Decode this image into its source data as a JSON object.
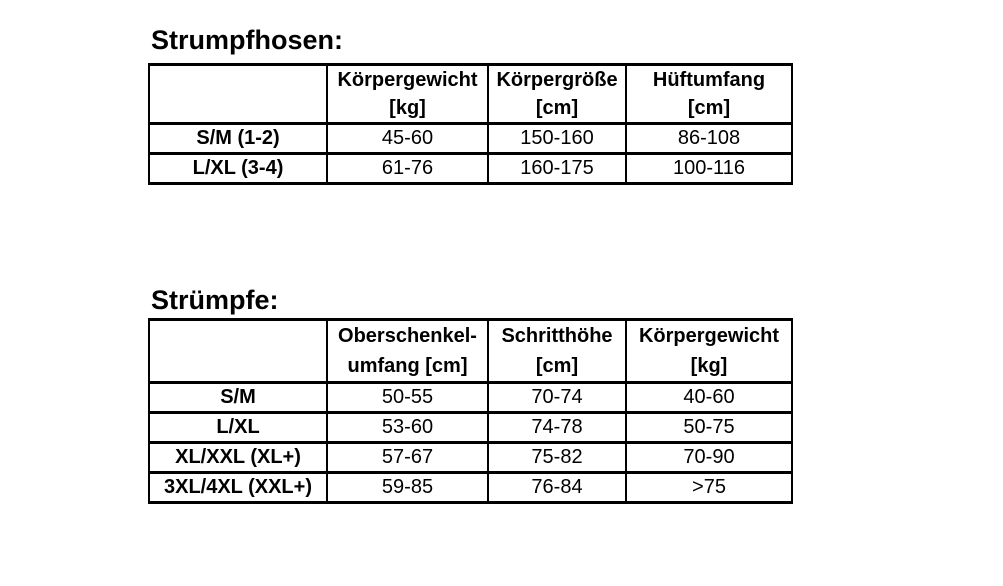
{
  "page": {
    "background": "#ffffff",
    "text_color": "#000000",
    "border_color": "#000000"
  },
  "tables": [
    {
      "title": "Strumpfhosen:",
      "columns": [
        {
          "line1": "",
          "line2": ""
        },
        {
          "line1": "Körpergewicht",
          "line2": "[kg]"
        },
        {
          "line1": "Körpergröße",
          "line2": "[cm]"
        },
        {
          "line1": "Hüftumfang",
          "line2": "[cm]"
        }
      ],
      "rows": [
        {
          "label": "S/M (1-2)",
          "values": [
            "45-60",
            "150-160",
            "86-108"
          ]
        },
        {
          "label": "L/XL (3-4)",
          "values": [
            "61-76",
            "160-175",
            "100-116"
          ]
        }
      ]
    },
    {
      "title": "Strümpfe:",
      "columns": [
        {
          "line1": "",
          "line2": ""
        },
        {
          "line1": "Oberschenkel-",
          "line2": "umfang [cm]"
        },
        {
          "line1": "Schritthöhe",
          "line2": "[cm]"
        },
        {
          "line1": "Körpergewicht",
          "line2": "[kg]"
        }
      ],
      "rows": [
        {
          "label": "S/M",
          "values": [
            "50-55",
            "70-74",
            "40-60"
          ]
        },
        {
          "label": "L/XL",
          "values": [
            "53-60",
            "74-78",
            "50-75"
          ]
        },
        {
          "label": "XL/XXL (XL+)",
          "values": [
            "57-67",
            "75-82",
            "70-90"
          ]
        },
        {
          "label": "3XL/4XL (XXL+)",
          "values": [
            "59-85",
            "76-84",
            ">75"
          ]
        }
      ]
    }
  ]
}
